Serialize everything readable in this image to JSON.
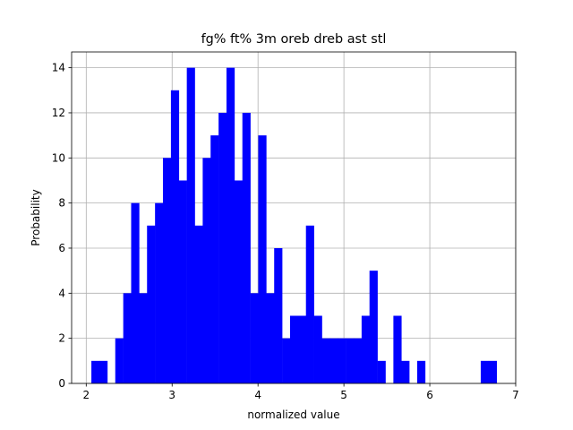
{
  "chart_data": {
    "type": "histogram",
    "title": "fg% ft% 3m oreb dreb ast stl",
    "xlabel": "normalized value",
    "ylabel": "Probability",
    "xlim": [
      1.83,
      7.0
    ],
    "ylim": [
      0,
      14.7
    ],
    "grid": true,
    "bar_color": "#0000ff",
    "bin_width": 0.0925,
    "bins": [
      [
        2.06,
        1
      ],
      [
        2.153,
        1
      ],
      [
        2.338,
        2
      ],
      [
        2.431,
        4
      ],
      [
        2.523,
        4
      ],
      [
        2.616,
        4
      ],
      [
        2.708,
        7
      ],
      [
        2.801,
        8
      ],
      [
        2.893,
        10
      ],
      [
        2.986,
        13
      ],
      [
        3.078,
        9
      ],
      [
        3.171,
        14
      ],
      [
        3.263,
        7
      ],
      [
        3.356,
        10
      ],
      [
        3.448,
        11
      ],
      [
        3.541,
        12
      ],
      [
        3.633,
        14
      ],
      [
        3.726,
        9
      ],
      [
        3.818,
        12
      ],
      [
        3.911,
        4
      ],
      [
        4.003,
        11
      ],
      [
        4.096,
        4
      ],
      [
        4.188,
        6
      ],
      [
        4.281,
        2
      ],
      [
        4.373,
        3
      ],
      [
        4.466,
        3
      ],
      [
        4.558,
        3
      ],
      [
        4.651,
        3
      ],
      [
        4.743,
        2
      ],
      [
        4.836,
        2
      ],
      [
        4.928,
        2
      ],
      [
        5.021,
        2
      ],
      [
        5.113,
        2
      ],
      [
        5.206,
        3
      ],
      [
        5.298,
        5
      ],
      [
        5.391,
        1
      ],
      [
        5.576,
        3
      ],
      [
        5.668,
        1
      ],
      [
        5.853,
        1
      ],
      [
        6.593,
        1
      ],
      [
        6.686,
        1
      ]
    ],
    "overlay_bins": [
      [
        2.523,
        8
      ],
      [
        4.558,
        7
      ]
    ],
    "xticks": [
      2,
      3,
      4,
      5,
      6,
      7
    ],
    "yticks": [
      0,
      2,
      4,
      6,
      8,
      10,
      12,
      14
    ]
  }
}
